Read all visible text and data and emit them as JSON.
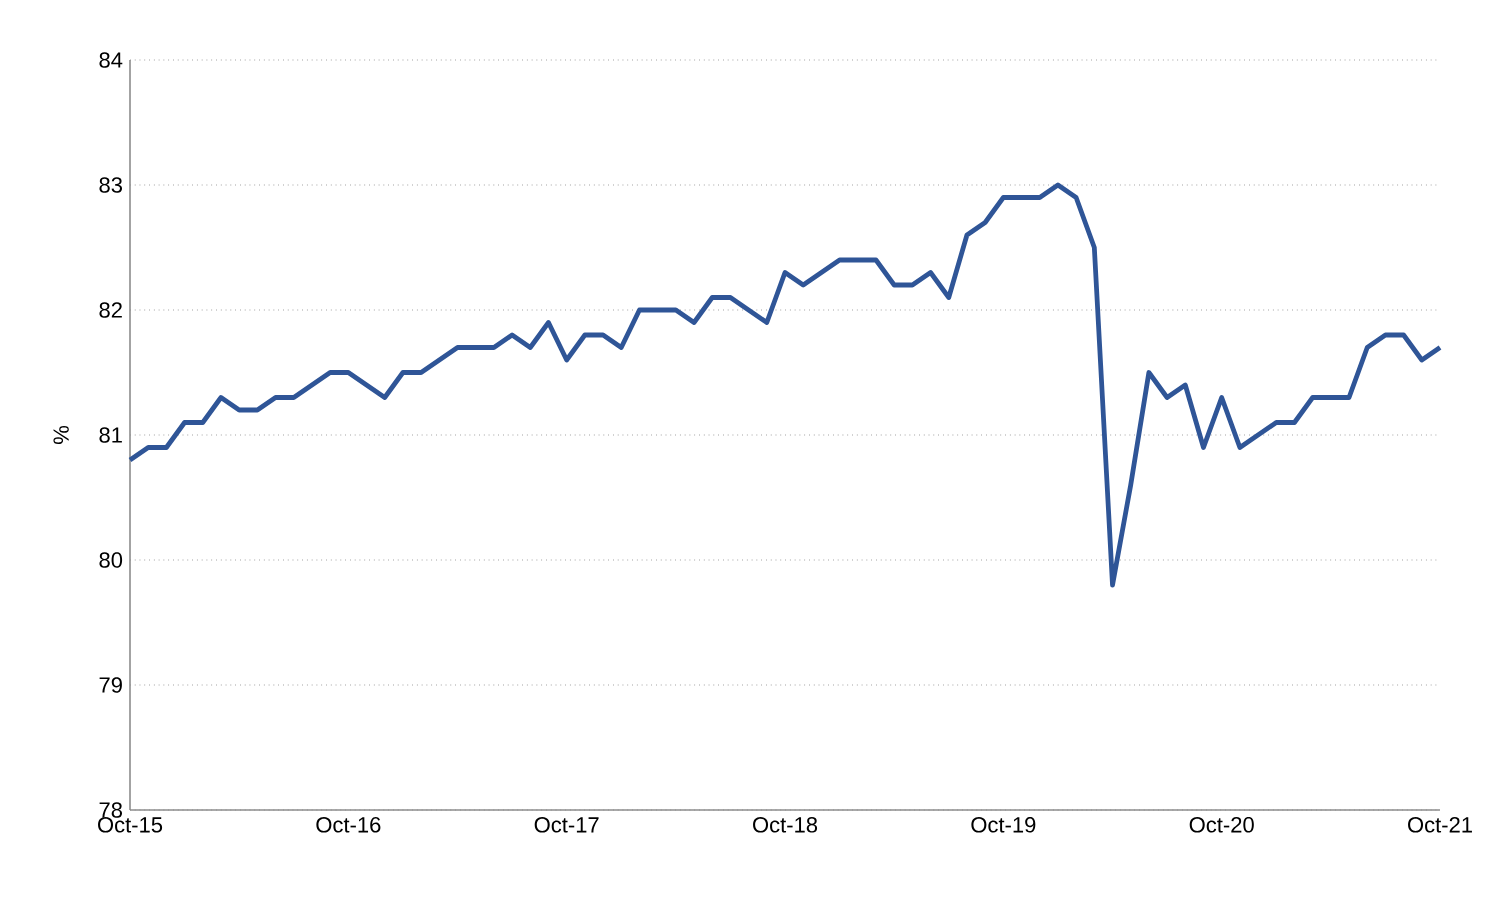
{
  "chart_data": {
    "type": "line",
    "ylabel": "%",
    "categories": [
      "Oct-15",
      null,
      null,
      null,
      null,
      null,
      null,
      null,
      null,
      null,
      null,
      null,
      "Oct-16",
      null,
      null,
      null,
      null,
      null,
      null,
      null,
      null,
      null,
      null,
      null,
      "Oct-17",
      null,
      null,
      null,
      null,
      null,
      null,
      null,
      null,
      null,
      null,
      null,
      "Oct-18",
      null,
      null,
      null,
      null,
      null,
      null,
      null,
      null,
      null,
      null,
      null,
      "Oct-19",
      null,
      null,
      null,
      null,
      null,
      null,
      null,
      null,
      null,
      null,
      null,
      "Oct-20",
      null,
      null,
      null,
      null,
      null,
      null,
      null,
      null,
      null,
      null,
      null,
      "Oct-21"
    ],
    "series": [
      {
        "color": "#2f5597",
        "values": [
          80.8,
          80.9,
          80.9,
          81.1,
          81.1,
          81.3,
          81.2,
          81.2,
          81.3,
          81.3,
          81.4,
          81.5,
          81.5,
          81.4,
          81.3,
          81.5,
          81.5,
          81.6,
          81.7,
          81.7,
          81.7,
          81.8,
          81.7,
          81.9,
          81.6,
          81.8,
          81.8,
          81.7,
          82.0,
          82.0,
          82.0,
          81.9,
          82.1,
          82.1,
          82.0,
          81.9,
          82.3,
          82.2,
          82.3,
          82.4,
          82.4,
          82.4,
          82.2,
          82.2,
          82.3,
          82.1,
          82.6,
          82.7,
          82.9,
          82.9,
          82.9,
          83.0,
          82.9,
          82.5,
          79.8,
          80.6,
          81.5,
          81.3,
          81.4,
          80.9,
          81.3,
          80.9,
          81.0,
          81.1,
          81.1,
          81.3,
          81.3,
          81.3,
          81.7,
          81.8,
          81.8,
          81.6,
          81.7
        ]
      }
    ],
    "ylim": [
      78,
      84
    ],
    "yticks": [
      78,
      79,
      80,
      81,
      82,
      83,
      84
    ],
    "grid": "y",
    "marker": "none",
    "line_style": "solid"
  }
}
